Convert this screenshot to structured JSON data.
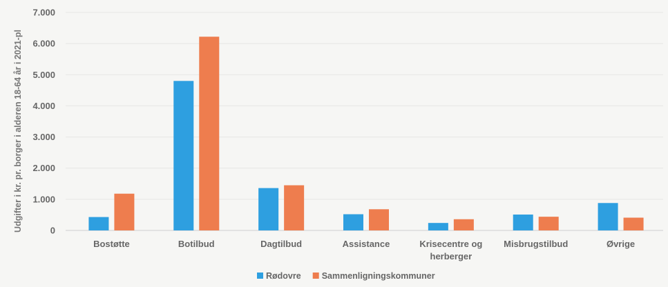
{
  "chart_data": {
    "type": "bar",
    "title": "",
    "xlabel": "",
    "ylabel": "Udgifter i kr. pr. borger i alderen 18-64 år i 2021-pl",
    "ylim": [
      0,
      7000
    ],
    "yticks": [
      0,
      1000,
      2000,
      3000,
      4000,
      5000,
      6000,
      7000
    ],
    "ytick_labels": [
      "0",
      "1.000",
      "2.000",
      "3.000",
      "4.000",
      "5.000",
      "6.000",
      "7.000"
    ],
    "categories": [
      [
        "Bostøtte"
      ],
      [
        "Botilbud"
      ],
      [
        "Dagtilbud"
      ],
      [
        "Assistance"
      ],
      [
        "Krisecentre og",
        "herberger"
      ],
      [
        "Misbrugstilbud"
      ],
      [
        "Øvrige"
      ]
    ],
    "series": [
      {
        "name": "Rødovre",
        "color": "#2e9fe0",
        "values": [
          430,
          4800,
          1360,
          520,
          240,
          510,
          880
        ]
      },
      {
        "name": "Sammenligningskommuner",
        "color": "#ee7d4e",
        "values": [
          1180,
          6220,
          1450,
          680,
          360,
          440,
          410
        ]
      }
    ],
    "grid": true,
    "legend_position": "bottom-center"
  }
}
